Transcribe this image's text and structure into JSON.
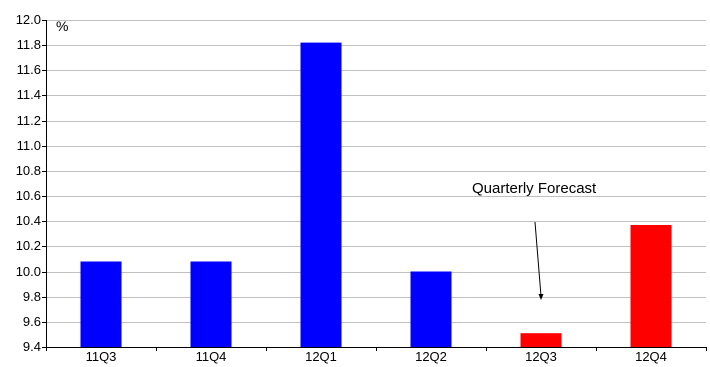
{
  "chart_data": {
    "type": "bar",
    "categories": [
      "11Q3",
      "11Q4",
      "12Q1",
      "12Q2",
      "12Q3",
      "12Q4"
    ],
    "values": [
      10.08,
      10.08,
      11.82,
      10.0,
      9.51,
      10.37
    ],
    "bar_colors": [
      "#0000ff",
      "#0000ff",
      "#0000ff",
      "#0000ff",
      "#ff0000",
      "#ff0000"
    ],
    "ylabel": "%",
    "ylim": [
      9.4,
      12.0
    ],
    "yticks": [
      "9.4",
      "9.6",
      "9.8",
      "10.0",
      "10.2",
      "10.4",
      "10.6",
      "10.8",
      "11.0",
      "11.2",
      "11.4",
      "11.6",
      "11.8",
      "12.0"
    ],
    "grid": true,
    "annotation": {
      "text": "Quarterly Forecast",
      "target_category": "12Q3"
    },
    "colors": {
      "actual": "#0000ff",
      "forecast": "#ff0000",
      "grid": "#c0c0c0",
      "axis": "#000000"
    }
  }
}
